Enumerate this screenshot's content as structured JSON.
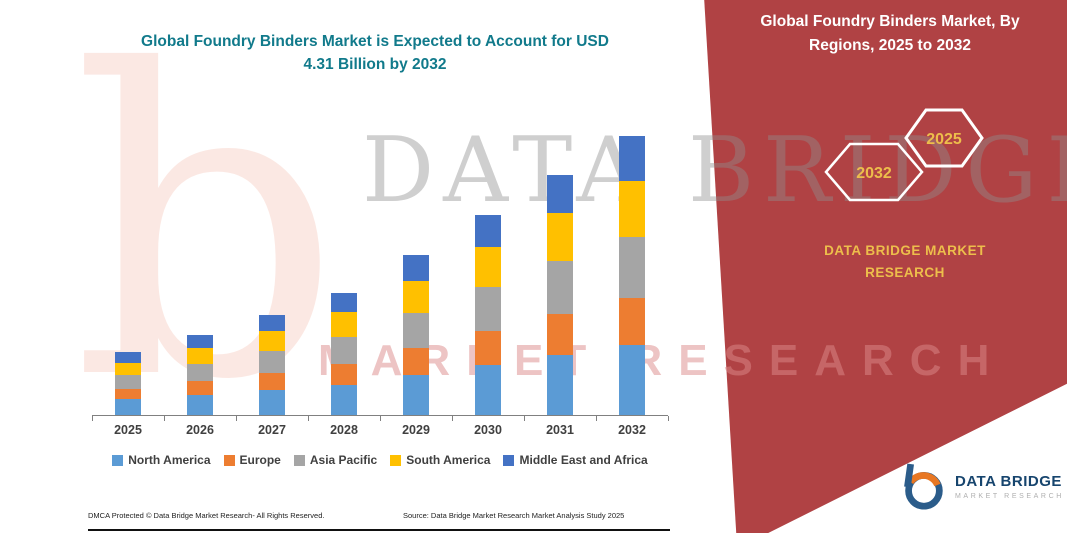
{
  "main": {
    "title_line1": "Global Foundry Binders Market is Expected to Account for USD",
    "title_line2": "4.31 Billion by 2032",
    "title_color": "#117A8B"
  },
  "chart_data": {
    "type": "bar",
    "stacked": true,
    "title": "Global Foundry Binders Market is Expected to Account for USD 4.31 Billion by 2032",
    "unit": "USD Billion",
    "xlabel": "",
    "ylabel": "",
    "ylim": [
      0,
      4.5
    ],
    "grid": false,
    "legend_position": "bottom",
    "categories": [
      "2025",
      "2026",
      "2027",
      "2028",
      "2029",
      "2030",
      "2031",
      "2032"
    ],
    "series": [
      {
        "name": "North America",
        "color": "#5B9BD5",
        "values": [
          0.24,
          0.31,
          0.39,
          0.47,
          0.62,
          0.77,
          0.93,
          1.08
        ]
      },
      {
        "name": "Europe",
        "color": "#ED7D31",
        "values": [
          0.16,
          0.21,
          0.26,
          0.32,
          0.42,
          0.53,
          0.63,
          0.73
        ]
      },
      {
        "name": "Asia Pacific",
        "color": "#A5A5A5",
        "values": [
          0.21,
          0.27,
          0.34,
          0.42,
          0.54,
          0.68,
          0.82,
          0.95
        ]
      },
      {
        "name": "South America",
        "color": "#FFC000",
        "values": [
          0.19,
          0.25,
          0.31,
          0.38,
          0.49,
          0.62,
          0.74,
          0.86
        ]
      },
      {
        "name": "Middle East and Africa",
        "color": "#4472C4",
        "values": [
          0.17,
          0.2,
          0.25,
          0.3,
          0.4,
          0.49,
          0.59,
          0.69
        ]
      }
    ],
    "totals": [
      0.97,
      1.24,
      1.55,
      1.89,
      2.47,
      3.09,
      3.71,
      4.31
    ]
  },
  "panel": {
    "bg_color": "#B04244",
    "accent_gold": "#EDBE4B",
    "title_line1": "Global Foundry Binders Market, By",
    "title_line2": "Regions, 2025 to 2032",
    "hexagon_left": "2032",
    "hexagon_right": "2025",
    "brand_line1": "DATA BRIDGE MARKET",
    "brand_line2": "RESEARCH"
  },
  "watermark": {
    "big_letter": "b",
    "line1": "DATA BRIDGE",
    "line2": "MARKET RESEARCH"
  },
  "logo": {
    "name": "DATA BRIDGE",
    "subtitle": "MARKET RESEARCH"
  },
  "footer": {
    "dmca": "DMCA Protected © Data Bridge Market Research-  All Rights Reserved.",
    "source": "Source: Data Bridge Market Research  Market Analysis Study 2025"
  }
}
